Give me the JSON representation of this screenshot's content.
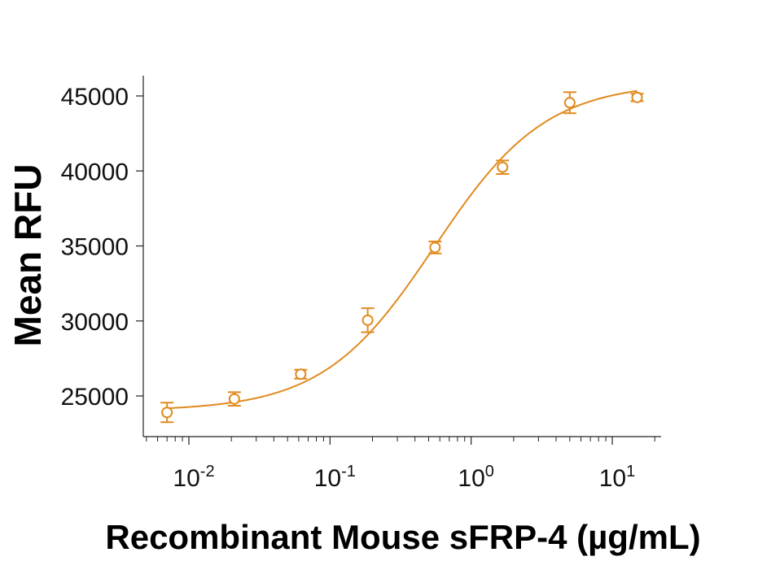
{
  "chart_data": {
    "type": "scatter",
    "title": "",
    "xlabel": "Recombinant Mouse sFRP-4 (µg/mL)",
    "ylabel": "Mean RFU",
    "xscale": "log",
    "xlim": [
      0.005,
      20
    ],
    "ylim": [
      22500,
      46500
    ],
    "x_ticks": [
      {
        "base": "10",
        "exp": "-2",
        "value": 0.01
      },
      {
        "base": "10",
        "exp": "-1",
        "value": 0.1
      },
      {
        "base": "10",
        "exp": "0",
        "value": 1
      },
      {
        "base": "10",
        "exp": "1",
        "value": 10
      }
    ],
    "y_ticks": [
      25000,
      30000,
      35000,
      40000,
      45000
    ],
    "y_tick_labels": [
      "25000",
      "30000",
      "35000",
      "40000",
      "45000"
    ],
    "grid": false,
    "legend": "none",
    "color": "#E08A1E",
    "series": [
      {
        "x": [
          0.007,
          0.021,
          0.062,
          0.185,
          0.555,
          1.67,
          5.0,
          15.0
        ],
        "y": [
          23900,
          24800,
          26450,
          30050,
          34900,
          40250,
          44550,
          44900
        ],
        "err": [
          650,
          450,
          300,
          800,
          400,
          450,
          700,
          250
        ]
      }
    ],
    "fit": {
      "model": "4PL",
      "bottom": 24000,
      "top": 45900,
      "ec50": 0.55,
      "hill": 1.1
    }
  }
}
